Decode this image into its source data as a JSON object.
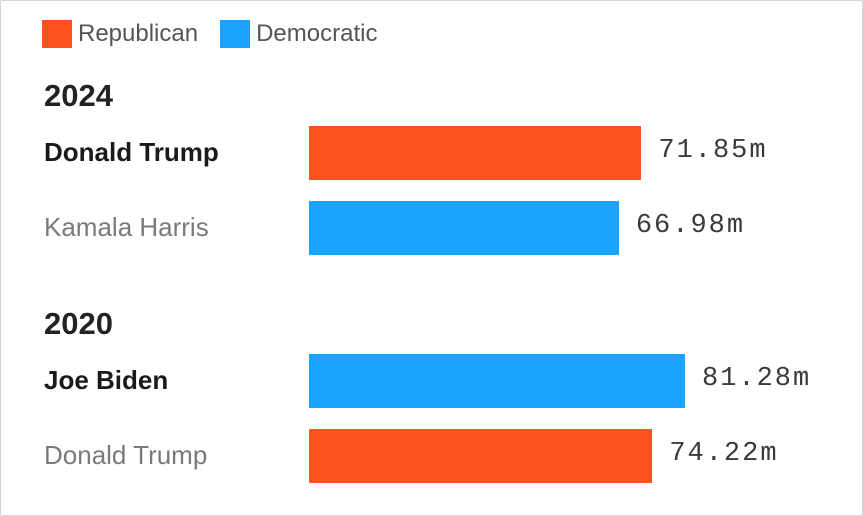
{
  "colors": {
    "republican": "#ff5020",
    "democratic": "#1aa3ff"
  },
  "legend": [
    {
      "label": "Republican",
      "color": "#ff5020"
    },
    {
      "label": "Democratic",
      "color": "#1aa3ff"
    }
  ],
  "chart_data": {
    "type": "bar",
    "orientation": "horizontal",
    "unit": "m",
    "groups": [
      {
        "year": "2024",
        "entries": [
          {
            "name": "Donald Trump",
            "party": "Republican",
            "value": 71.85,
            "label": "71.85m",
            "winner": true
          },
          {
            "name": "Kamala Harris",
            "party": "Democratic",
            "value": 66.98,
            "label": "66.98m",
            "winner": false
          }
        ]
      },
      {
        "year": "2020",
        "entries": [
          {
            "name": "Joe Biden",
            "party": "Democratic",
            "value": 81.28,
            "label": "81.28m",
            "winner": true
          },
          {
            "name": "Donald Trump",
            "party": "Republican",
            "value": 74.22,
            "label": "74.22m",
            "winner": false
          }
        ]
      }
    ],
    "legend_position": "top-left",
    "grid": false
  }
}
